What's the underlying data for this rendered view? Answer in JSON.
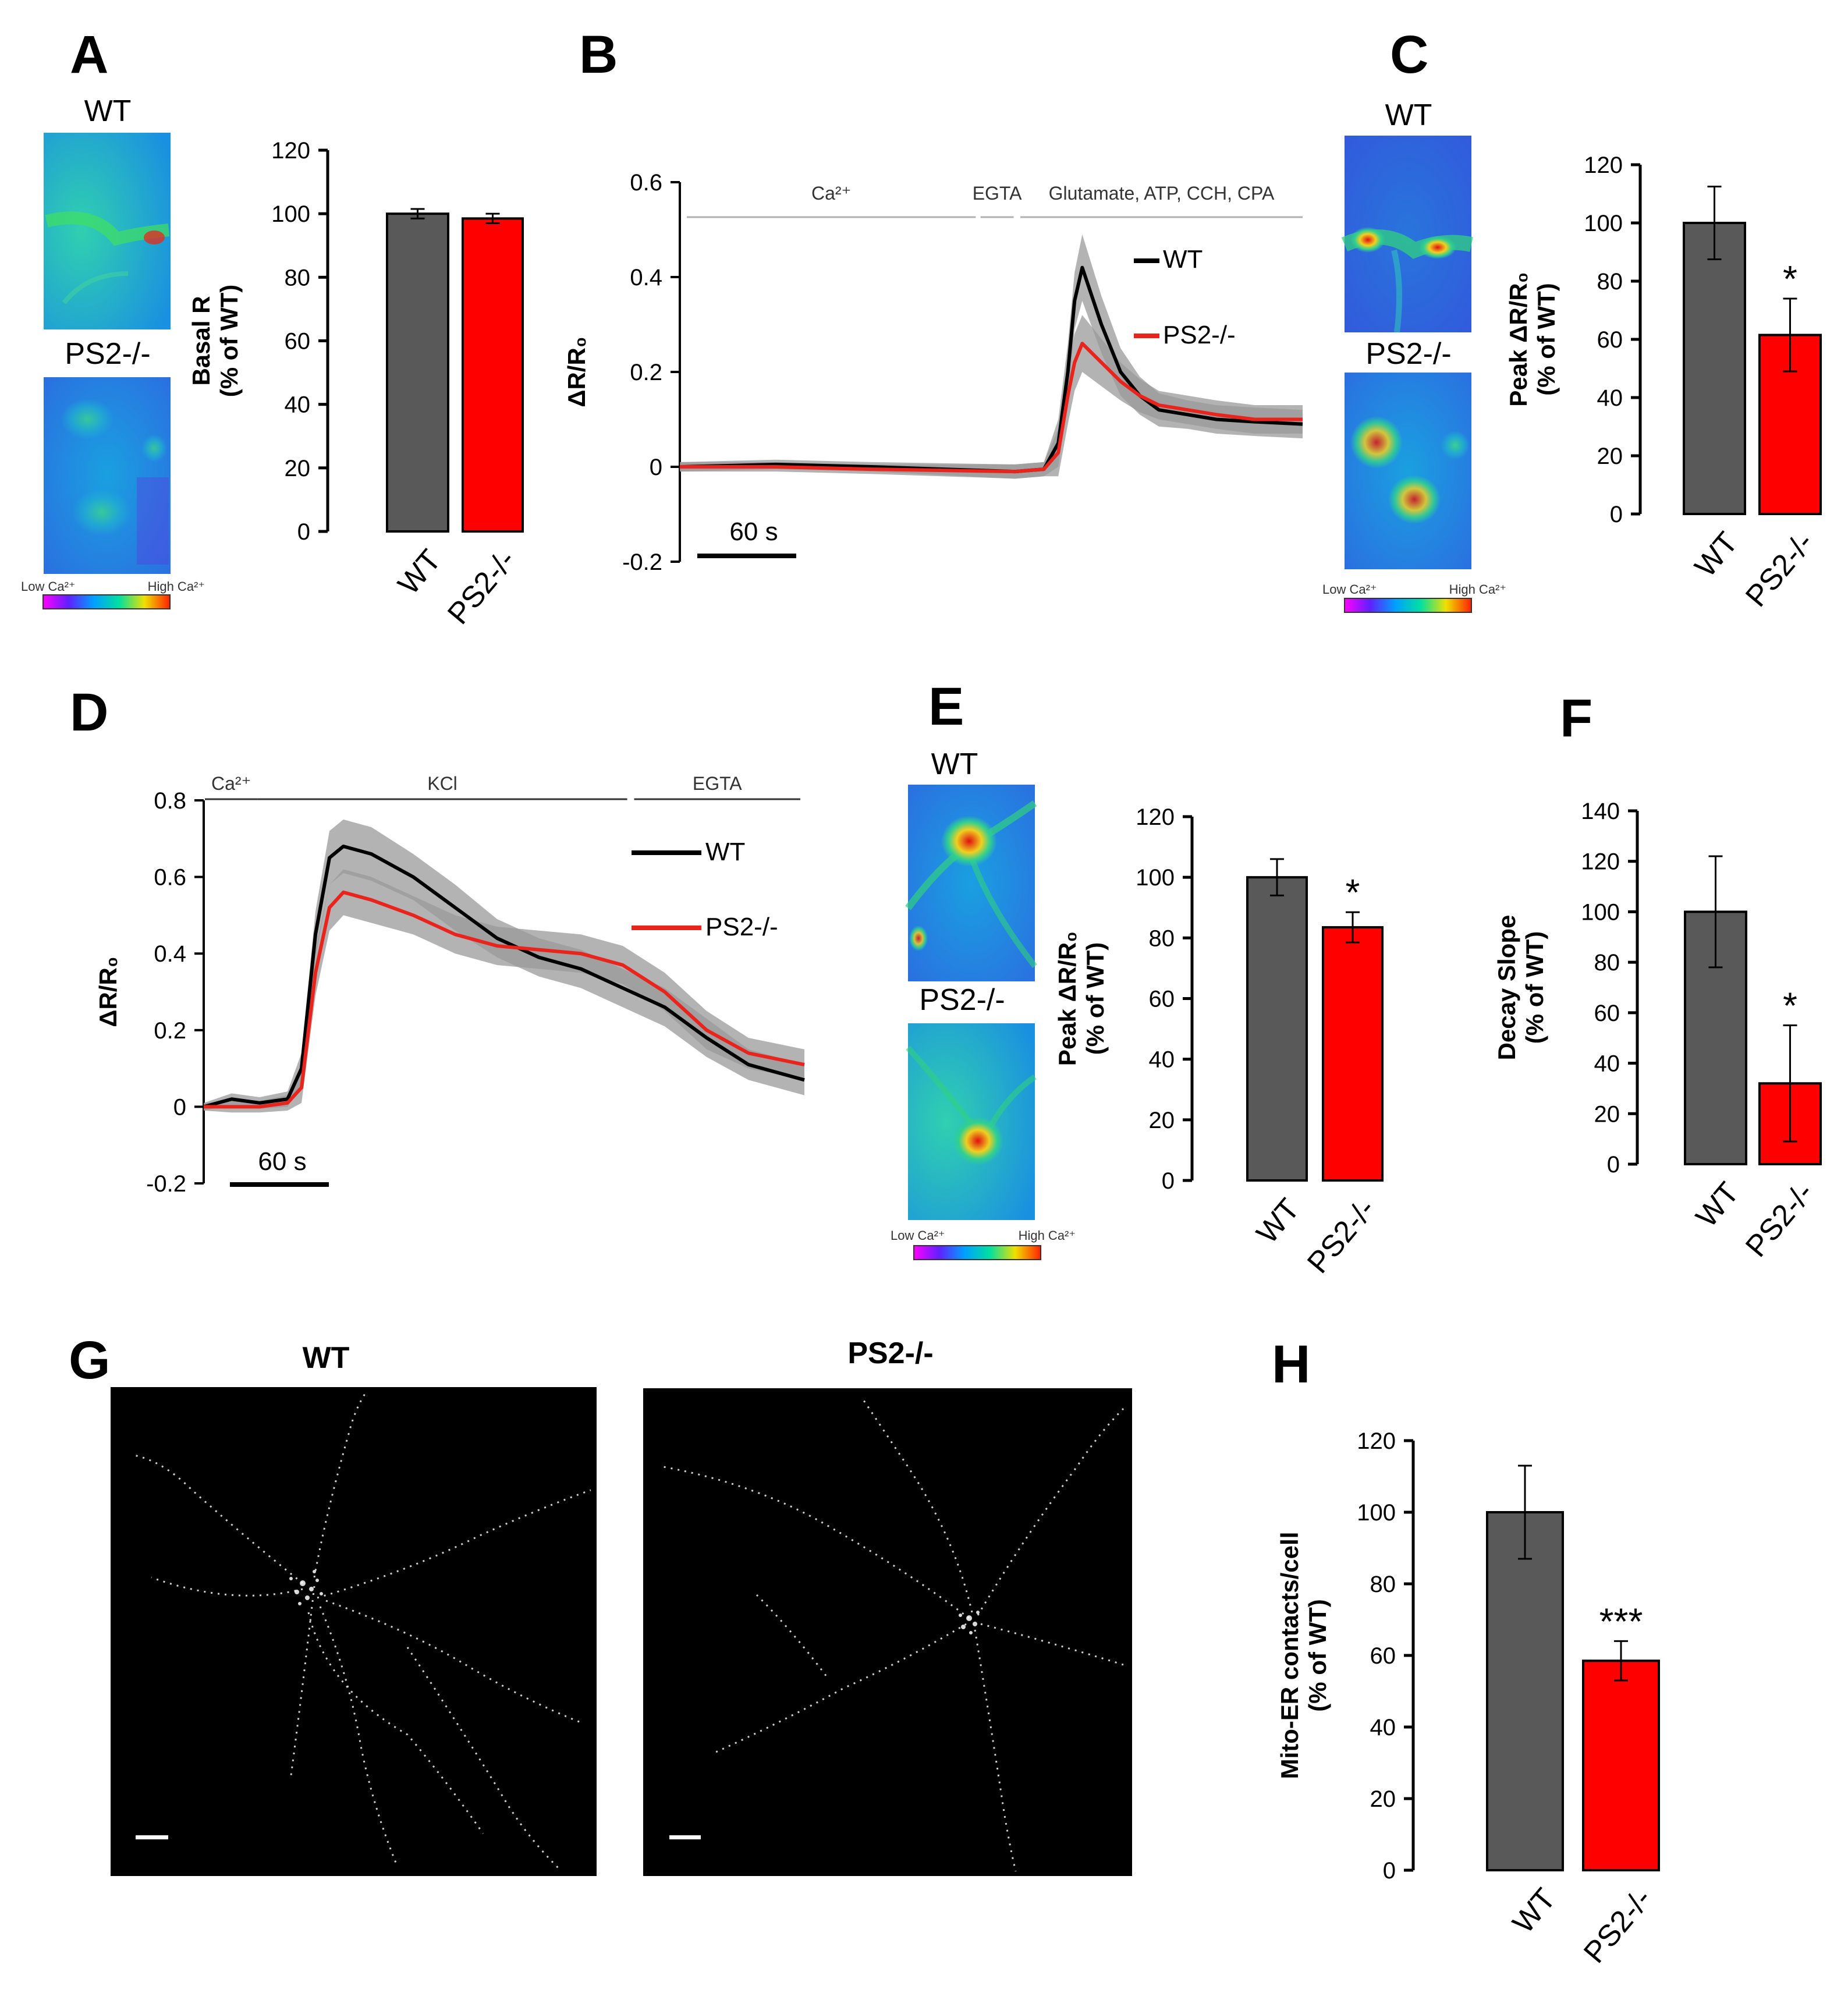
{
  "colors": {
    "wt": "#595959",
    "ps2": "#ff0000",
    "wt_trace": "#000000",
    "ps2_trace": "#e8241c",
    "sem_band": "#9a9a9a"
  },
  "panels": {
    "A": {
      "letter": "A",
      "img_wt_label": "WT",
      "img_ps2_label": "PS2-/-",
      "cbar_low": "Low Ca²⁺",
      "cbar_high": "High Ca²⁺"
    },
    "B": {
      "letter": "B",
      "scale_label": "60 s",
      "cond_1": "Ca²⁺",
      "cond_2": "EGTA",
      "cond_3": "Glutamate, ATP, CCH, CPA"
    },
    "C": {
      "letter": "C",
      "img_wt_label": "WT",
      "img_ps2_label": "PS2-/-",
      "cbar_low": "Low Ca²⁺",
      "cbar_high": "High Ca²⁺"
    },
    "D": {
      "letter": "D",
      "scale_label": "60 s",
      "cond_1": "Ca²⁺",
      "cond_2": "KCl",
      "cond_3": "EGTA"
    },
    "E": {
      "letter": "E",
      "img_wt_label": "WT",
      "img_ps2_label": "PS2-/-",
      "cbar_low": "Low Ca²⁺",
      "cbar_high": "High Ca²⁺"
    },
    "F": {
      "letter": "F"
    },
    "G": {
      "letter": "G",
      "title_wt": "WT",
      "title_ps2": "PS2-/-"
    },
    "H": {
      "letter": "H"
    }
  },
  "chart_data": [
    {
      "id": "A-bar",
      "type": "bar",
      "ylabel_1": "Basal R",
      "ylabel_2": "(% of WT)",
      "ylim": [
        0,
        120
      ],
      "yticks": [
        0,
        20,
        40,
        60,
        80,
        100,
        120
      ],
      "categories": [
        "WT",
        "PS2-/-"
      ],
      "values": [
        100,
        98.5
      ],
      "errors": [
        1.5,
        1.5
      ],
      "significance": [
        "",
        ""
      ]
    },
    {
      "id": "B-trace",
      "type": "line",
      "ylabel": "ΔR/R₀",
      "ylim": [
        -0.2,
        0.6
      ],
      "yticks": [
        -0.2,
        0,
        0.2,
        0.4,
        0.6
      ],
      "ytick_labels": [
        "-0.2",
        "0",
        "0.2",
        "0.4",
        "0.6"
      ],
      "xlim": [
        0,
        650
      ],
      "scalebar_seconds": 60,
      "conditions": [
        {
          "label": "Ca²⁺",
          "start": 0,
          "end": 305
        },
        {
          "label": "EGTA",
          "start": 310,
          "end": 345
        },
        {
          "label": "Glutamate, ATP, CCH, CPA",
          "start": 352,
          "end": 650
        }
      ],
      "series": [
        {
          "name": "WT",
          "x": [
            0,
            100,
            200,
            350,
            380,
            395,
            405,
            412,
            420,
            440,
            460,
            480,
            500,
            530,
            560,
            600,
            650
          ],
          "y": [
            0,
            0.005,
            0.0,
            -0.01,
            -0.005,
            0.05,
            0.2,
            0.35,
            0.42,
            0.3,
            0.2,
            0.15,
            0.12,
            0.11,
            0.1,
            0.095,
            0.09
          ],
          "sem": [
            0.01,
            0.01,
            0.01,
            0.015,
            0.015,
            0.05,
            0.06,
            0.06,
            0.07,
            0.06,
            0.05,
            0.04,
            0.035,
            0.03,
            0.03,
            0.03,
            0.03
          ]
        },
        {
          "name": "PS2-/-",
          "x": [
            0,
            100,
            200,
            350,
            380,
            395,
            405,
            412,
            420,
            440,
            460,
            480,
            500,
            530,
            560,
            600,
            650
          ],
          "y": [
            0,
            0.0,
            -0.005,
            -0.01,
            -0.005,
            0.03,
            0.15,
            0.22,
            0.26,
            0.22,
            0.18,
            0.15,
            0.13,
            0.12,
            0.11,
            0.1,
            0.1
          ],
          "sem": [
            0.01,
            0.01,
            0.01,
            0.015,
            0.015,
            0.05,
            0.06,
            0.06,
            0.06,
            0.05,
            0.04,
            0.035,
            0.03,
            0.03,
            0.03,
            0.03,
            0.03
          ]
        }
      ]
    },
    {
      "id": "C-bar",
      "type": "bar",
      "ylabel_1": "Peak ΔR/R₀",
      "ylabel_2": "(% of WT)",
      "ylim": [
        0,
        120
      ],
      "yticks": [
        0,
        20,
        40,
        60,
        80,
        100,
        120
      ],
      "categories": [
        "WT",
        "PS2-/-"
      ],
      "values": [
        100,
        61.5
      ],
      "errors": [
        12.5,
        12.5
      ],
      "significance": [
        "",
        "*"
      ]
    },
    {
      "id": "D-trace",
      "type": "line",
      "ylabel": "ΔR/R₀",
      "ylim": [
        -0.2,
        0.8
      ],
      "yticks": [
        -0.2,
        0,
        0.2,
        0.4,
        0.6,
        0.8
      ],
      "ytick_labels": [
        "-0.2",
        "0",
        "0.2",
        "0.4",
        "0.6",
        "0.8"
      ],
      "xlim": [
        0,
        430
      ],
      "scalebar_seconds": 60,
      "conditions": [
        {
          "label": "Ca²⁺",
          "start": 0,
          "end": 38
        },
        {
          "label": "KCl",
          "start": 38,
          "end": 305
        },
        {
          "label": "EGTA",
          "start": 310,
          "end": 430
        }
      ],
      "series": [
        {
          "name": "WT",
          "x": [
            0,
            20,
            40,
            60,
            70,
            80,
            90,
            100,
            120,
            150,
            180,
            210,
            240,
            270,
            300,
            330,
            360,
            390,
            430
          ],
          "y": [
            0,
            0.02,
            0.01,
            0.02,
            0.1,
            0.45,
            0.65,
            0.68,
            0.66,
            0.6,
            0.52,
            0.44,
            0.39,
            0.36,
            0.31,
            0.26,
            0.18,
            0.11,
            0.07
          ],
          "sem": [
            0.01,
            0.015,
            0.015,
            0.02,
            0.04,
            0.06,
            0.07,
            0.07,
            0.07,
            0.06,
            0.06,
            0.05,
            0.05,
            0.05,
            0.05,
            0.05,
            0.05,
            0.04,
            0.04
          ]
        },
        {
          "name": "PS2-/-",
          "x": [
            0,
            20,
            40,
            60,
            70,
            80,
            90,
            100,
            120,
            150,
            180,
            210,
            240,
            270,
            300,
            330,
            360,
            390,
            430
          ],
          "y": [
            0,
            0.0,
            0.0,
            0.01,
            0.05,
            0.35,
            0.52,
            0.56,
            0.54,
            0.5,
            0.45,
            0.42,
            0.41,
            0.4,
            0.37,
            0.3,
            0.2,
            0.14,
            0.11
          ],
          "sem": [
            0.01,
            0.015,
            0.015,
            0.02,
            0.04,
            0.06,
            0.06,
            0.06,
            0.06,
            0.05,
            0.05,
            0.05,
            0.05,
            0.05,
            0.05,
            0.05,
            0.05,
            0.04,
            0.04
          ]
        }
      ]
    },
    {
      "id": "E-bar",
      "type": "bar",
      "ylabel_1": "Peak ΔR/R₀",
      "ylabel_2": "(% of WT)",
      "ylim": [
        0,
        120
      ],
      "yticks": [
        0,
        20,
        40,
        60,
        80,
        100,
        120
      ],
      "categories": [
        "WT",
        "PS2-/-"
      ],
      "values": [
        100,
        83.5
      ],
      "errors": [
        6,
        5
      ],
      "significance": [
        "",
        "*"
      ]
    },
    {
      "id": "F-bar",
      "type": "bar",
      "ylabel_1": "Decay Slope",
      "ylabel_2": "(% of WT)",
      "ylim": [
        0,
        140
      ],
      "yticks": [
        0,
        20,
        40,
        60,
        80,
        100,
        120,
        140
      ],
      "categories": [
        "WT",
        "PS2-/-"
      ],
      "values": [
        100,
        32
      ],
      "errors": [
        22,
        23
      ],
      "significance": [
        "",
        "*"
      ]
    },
    {
      "id": "H-bar",
      "type": "bar",
      "ylabel_1": "Mito-ER contacts/cell",
      "ylabel_2": "(% of WT)",
      "ylim": [
        0,
        120
      ],
      "yticks": [
        0,
        20,
        40,
        60,
        80,
        100,
        120
      ],
      "categories": [
        "WT",
        "PS2-/-"
      ],
      "values": [
        100,
        58.5
      ],
      "errors": [
        13,
        5.5
      ],
      "significance": [
        "",
        "***"
      ]
    }
  ]
}
